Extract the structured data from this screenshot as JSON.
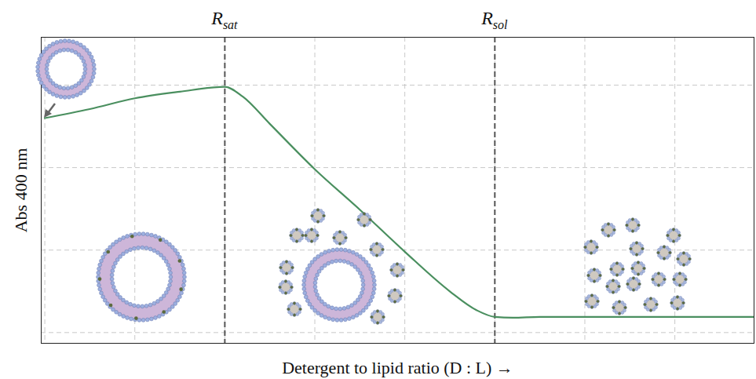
{
  "chart_data": {
    "type": "line",
    "x_label": "Detergent to lipid ratio (D : L) →",
    "y_label": "Abs 400 nm",
    "x": [
      0,
      0.5,
      1,
      1.5,
      2,
      2.2,
      2.5,
      3,
      3.5,
      4,
      4.5,
      4.8,
      5,
      5.2,
      5.5,
      6,
      7,
      7.88
    ],
    "values": [
      2.6,
      2.71,
      2.84,
      2.92,
      2.98,
      2.86,
      2.53,
      1.98,
      1.49,
      0.98,
      0.5,
      0.27,
      0.19,
      0.18,
      0.19,
      0.19,
      0.19,
      0.19
    ],
    "color": "#4a8f5f",
    "xlim": [
      -0.04,
      7.88
    ],
    "ylim": [
      -0.13,
      3.58
    ],
    "xticks": [
      0,
      1,
      2,
      3,
      4,
      5,
      6,
      7
    ],
    "yticks": [
      0,
      1,
      2,
      3
    ],
    "grid": true,
    "tick_labels": false,
    "annotations": [
      {
        "text": "R",
        "subscript": "sat",
        "x": 2
      },
      {
        "text": "R",
        "subscript": "sol",
        "x": 5
      }
    ]
  }
}
